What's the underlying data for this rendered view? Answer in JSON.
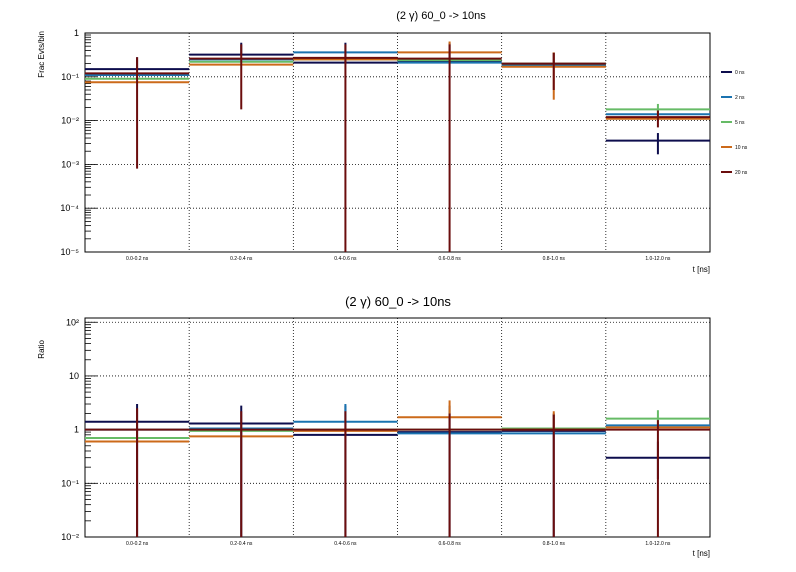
{
  "chart_data": [
    {
      "type": "bar",
      "title": "(2 γ) 60_0 -> 10ns",
      "xlabel": "t [ns]",
      "ylabel": "Frac Evts/bin",
      "yscale": "log",
      "ylim": [
        1e-05,
        1
      ],
      "y_ticks": [
        {
          "value": 1,
          "label": "1"
        },
        {
          "value": 0.1,
          "label": "10⁻¹"
        },
        {
          "value": 0.01,
          "label": "10⁻²"
        },
        {
          "value": 0.001,
          "label": "10⁻³"
        },
        {
          "value": 0.0001,
          "label": "10⁻⁴"
        },
        {
          "value": 1e-05,
          "label": "10⁻⁵"
        }
      ],
      "grid": true,
      "legend_position": "right",
      "categories": [
        "0.0-0.2 ns",
        "0.2-0.4 ns",
        "0.4-0.6 ns",
        "0.6-0.8 ns",
        "0.8-1.0 ns",
        "1.0-12.0 ns"
      ],
      "series": [
        {
          "name": "0 ns",
          "color": "#0d0d4d",
          "values": [
            0.15,
            0.32,
            0.21,
            0.22,
            0.19,
            0.0035
          ],
          "err_low": [
            0.15,
            0.32,
            0.21,
            0.22,
            0.19,
            0.0017
          ],
          "err_high": [
            0.28,
            0.6,
            0.6,
            0.6,
            0.36,
            0.0052
          ]
        },
        {
          "name": "2 ns",
          "color": "#1a73b0",
          "values": [
            0.11,
            0.25,
            0.36,
            0.21,
            0.18,
            0.014
          ],
          "err_low": [
            0.11,
            0.25,
            0.36,
            0.21,
            0.18,
            0.014
          ],
          "err_high": [
            0.11,
            0.25,
            0.36,
            0.21,
            0.18,
            0.014
          ]
        },
        {
          "name": "5 ns",
          "color": "#66bb66",
          "values": [
            0.09,
            0.22,
            0.25,
            0.24,
            0.2,
            0.018
          ],
          "err_low": [
            0.09,
            0.22,
            0.25,
            0.24,
            0.2,
            0.014
          ],
          "err_high": [
            0.09,
            0.22,
            0.25,
            0.24,
            0.2,
            0.024
          ]
        },
        {
          "name": "10 ns",
          "color": "#cc6a1a",
          "values": [
            0.075,
            0.19,
            0.25,
            0.36,
            0.17,
            0.011
          ],
          "err_low": [
            0.075,
            0.19,
            0.25,
            0.36,
            0.03,
            0.011
          ],
          "err_high": [
            0.075,
            0.19,
            0.25,
            0.64,
            0.36,
            0.011
          ]
        },
        {
          "name": "20 ns",
          "color": "#6b0d0d",
          "values": [
            0.12,
            0.26,
            0.27,
            0.26,
            0.2,
            0.012
          ],
          "err_low": [
            0.0008,
            0.018,
            1e-05,
            1e-05,
            0.05,
            0.007
          ],
          "err_high": [
            0.28,
            0.55,
            0.55,
            0.55,
            0.35,
            0.017
          ]
        }
      ]
    },
    {
      "type": "bar",
      "title": "(2 γ) 60_0 -> 10ns",
      "xlabel": "t [ns]",
      "ylabel": "Ratio",
      "yscale": "log",
      "ylim": [
        0.01,
        120
      ],
      "y_ticks": [
        {
          "value": 100,
          "label": "10²"
        },
        {
          "value": 10,
          "label": "10"
        },
        {
          "value": 1,
          "label": "1"
        },
        {
          "value": 0.1,
          "label": "10⁻¹"
        },
        {
          "value": 0.01,
          "label": "10⁻²"
        }
      ],
      "grid": true,
      "categories": [
        "0.0-0.2 ns",
        "0.2-0.4 ns",
        "0.4-0.6 ns",
        "0.6-0.8 ns",
        "0.8-1.0 ns",
        "1.0-12.0 ns"
      ],
      "series": [
        {
          "name": "0 ns",
          "color": "#0d0d4d",
          "values": [
            1.4,
            1.3,
            0.8,
            0.9,
            0.95,
            0.3
          ],
          "err_low": [
            0.01,
            0.01,
            0.01,
            0.01,
            0.01,
            0.12
          ],
          "err_high": [
            3.0,
            2.8,
            2.8,
            2.8,
            2.0,
            0.6
          ]
        },
        {
          "name": "2 ns",
          "color": "#1a73b0",
          "values": [
            1.0,
            1.05,
            1.4,
            0.85,
            0.85,
            1.2
          ],
          "err_low": [
            1.0,
            1.05,
            1.4,
            0.85,
            0.85,
            1.2
          ],
          "err_high": [
            1.0,
            1.05,
            3.0,
            0.85,
            0.85,
            1.2
          ]
        },
        {
          "name": "5 ns",
          "color": "#66bb66",
          "values": [
            0.7,
            0.95,
            1.0,
            1.0,
            1.05,
            1.6
          ],
          "err_low": [
            0.7,
            0.95,
            1.0,
            1.0,
            1.05,
            1.2
          ],
          "err_high": [
            0.7,
            0.95,
            1.0,
            1.0,
            1.05,
            2.3
          ]
        },
        {
          "name": "10 ns",
          "color": "#cc6a1a",
          "values": [
            0.6,
            0.75,
            0.95,
            1.7,
            1.0,
            1.1
          ],
          "err_low": [
            0.6,
            0.75,
            0.95,
            1.7,
            1.0,
            1.1
          ],
          "err_high": [
            0.6,
            0.75,
            0.95,
            3.5,
            2.2,
            1.1
          ]
        },
        {
          "name": "20 ns",
          "color": "#6b0d0d",
          "values": [
            1.0,
            1.0,
            1.0,
            1.0,
            1.0,
            1.0
          ],
          "err_low": [
            0.01,
            0.01,
            0.01,
            0.01,
            0.01,
            0.01
          ],
          "err_high": [
            2.5,
            2.2,
            2.2,
            2.0,
            1.9,
            1.5
          ]
        }
      ]
    }
  ]
}
